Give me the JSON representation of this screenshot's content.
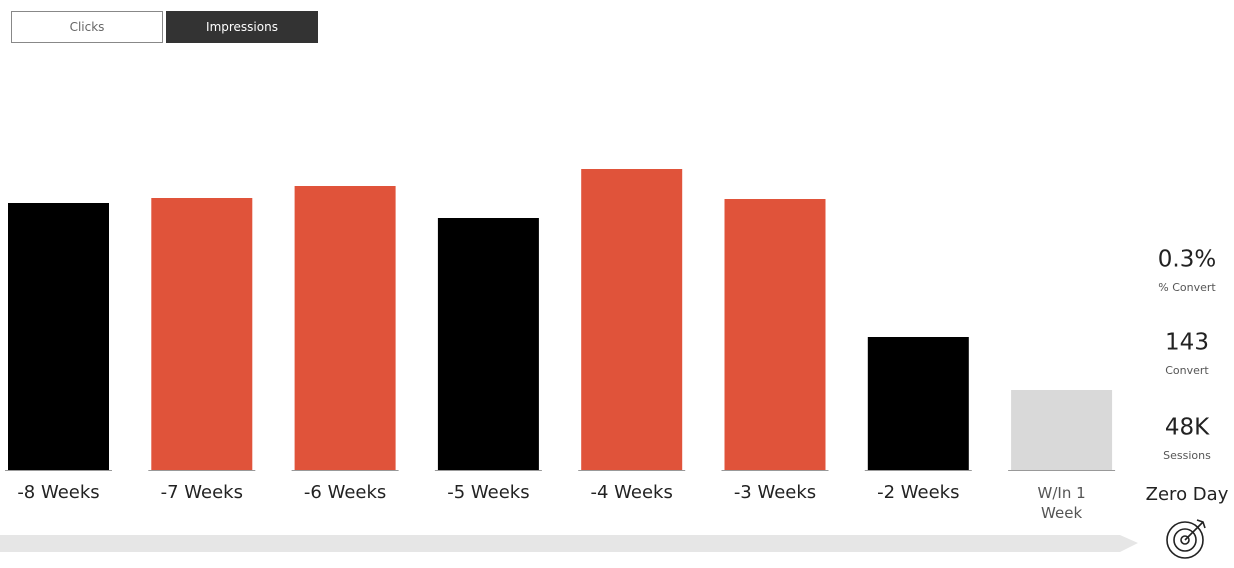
{
  "buttons": [
    "Clicks",
    "Impressions"
  ],
  "chart_data": {
    "type": "bar",
    "categories": [
      "-8 Weeks",
      "-7 Weeks",
      "-6 Weeks",
      "-5 Weeks",
      "-4 Weeks",
      "-3 Weeks",
      "-2 Weeks",
      "W/In 1 Week"
    ],
    "values": [
      267,
      272,
      284,
      252,
      301,
      271,
      133,
      80
    ],
    "colors": [
      "#000000",
      "#e0533a",
      "#e0533a",
      "#000000",
      "#e0533a",
      "#e0533a",
      "#000000",
      "#d9d9d9"
    ],
    "ylim": [
      0,
      350
    ]
  },
  "kpis": [
    {
      "value": "0.3%",
      "label": "% Convert"
    },
    {
      "value": "143",
      "label": "Convert"
    },
    {
      "value": "48K",
      "label": "Sessions"
    }
  ],
  "zero_day": "Zero Day"
}
